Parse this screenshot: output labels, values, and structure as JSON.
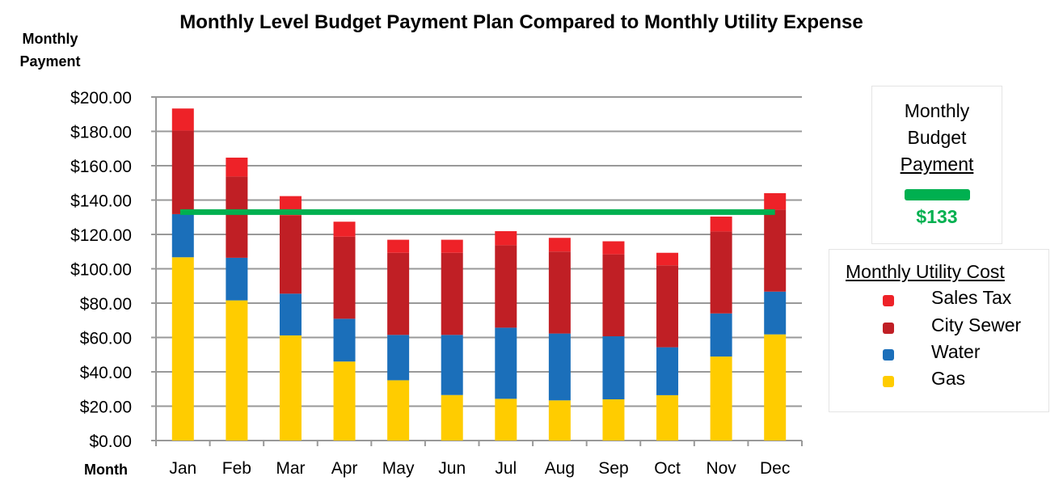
{
  "chart_data": {
    "type": "bar",
    "stacked": true,
    "title": "Monthly Level Budget Payment Plan Compared to Monthly Utility Expense",
    "ylabel": "Monthly Payment",
    "ylabel_lines": [
      "Monthly",
      "Payment"
    ],
    "xlabel": "Month",
    "ylim": [
      0,
      200
    ],
    "ytick_step": 20,
    "ytick_labels": [
      "$0.00",
      "$20.00",
      "$40.00",
      "$60.00",
      "$80.00",
      "$100.00",
      "$120.00",
      "$140.00",
      "$160.00",
      "$180.00",
      "$200.00"
    ],
    "grid": true,
    "categories": [
      "Jan",
      "Feb",
      "Mar",
      "Apr",
      "May",
      "Jun",
      "Jul",
      "Aug",
      "Sep",
      "Oct",
      "Nov",
      "Dec"
    ],
    "series": [
      {
        "name": "Gas",
        "color": "#ffcc00",
        "values": [
          106.7,
          81.6,
          61.2,
          46.0,
          35.1,
          26.5,
          24.3,
          23.4,
          24.0,
          26.4,
          48.9,
          61.8
        ]
      },
      {
        "name": "Water",
        "color": "#1b6fba",
        "values": [
          25.1,
          24.8,
          24.3,
          24.9,
          26.4,
          35.0,
          41.4,
          38.9,
          36.7,
          27.9,
          25.1,
          24.9
        ]
      },
      {
        "name": "City Sewer",
        "color": "#c01f25",
        "values": [
          48.6,
          47.3,
          45.5,
          47.8,
          47.8,
          47.8,
          48.0,
          47.7,
          47.7,
          47.7,
          47.7,
          47.7
        ]
      },
      {
        "name": "Sales Tax",
        "color": "#ee2228",
        "values": [
          12.9,
          11.0,
          11.3,
          8.7,
          7.6,
          7.6,
          8.2,
          8.0,
          7.6,
          7.3,
          8.7,
          9.6
        ]
      }
    ],
    "budget_line": {
      "value": 133,
      "color": "#00b050"
    },
    "legend": {
      "title": "Monthly Utility Cost",
      "placement": "right",
      "items": [
        "Sales Tax",
        "City Sewer",
        "Water",
        "Gas"
      ]
    },
    "budget_legend": {
      "title_lines": [
        "Monthly",
        "Budget",
        "Payment"
      ],
      "value_label": "$133"
    }
  }
}
